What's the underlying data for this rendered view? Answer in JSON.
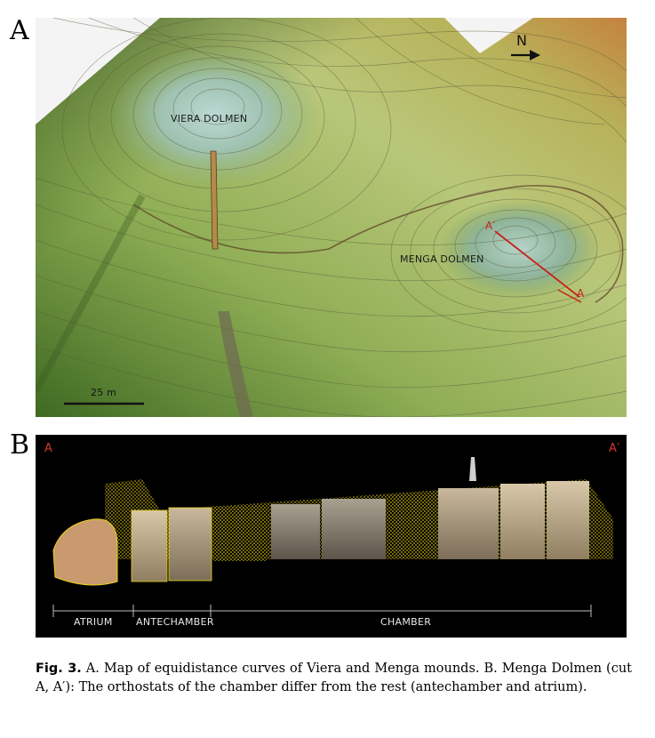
{
  "figure": {
    "panel_a": {
      "letter": "A",
      "labels": {
        "viera": "VIERA DOLMEN",
        "menga": "MENGA DOLMEN",
        "cut_start": "A′",
        "cut_end": "A",
        "north": "N",
        "scale": "25 m"
      }
    },
    "panel_b": {
      "letter": "B",
      "ends": {
        "left": "A",
        "right": "A′"
      },
      "sections": {
        "atrium": "ATRIUM",
        "antechamber": "ANTECHAMBER",
        "chamber": "CHAMBER"
      }
    },
    "caption": {
      "label": "Fig. 3.",
      "text": "A. Map of equidistance curves of Viera and Menga mounds. B. Menga Dolmen (cut A, A′): The orthostats of the chamber differ from the rest (antechamber and atrium)."
    },
    "colors": {
      "cut_line": "#c8201a",
      "point_cloud": "#e9d21a",
      "terrain_low": "#4c7a2a",
      "terrain_high": "#d6b85a"
    }
  }
}
